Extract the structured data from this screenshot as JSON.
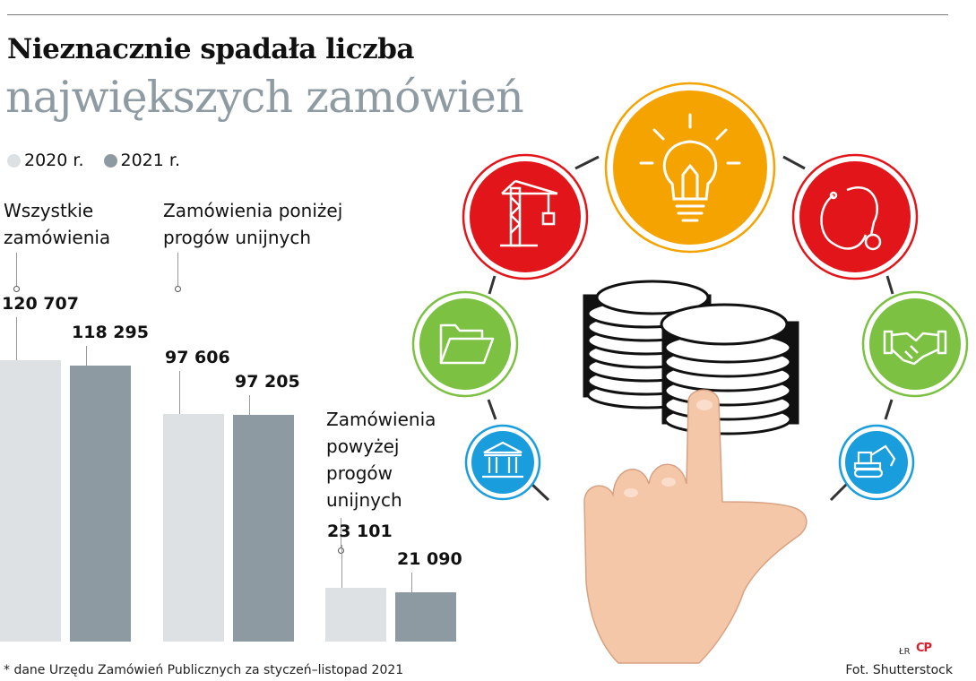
{
  "headline": {
    "line1": "Nieznacznie spadała liczba",
    "line2": "największych zamówień"
  },
  "legend": [
    {
      "label": "2020 r.",
      "color": "#dde1e4"
    },
    {
      "label": "2021 r.",
      "color": "#8d9aa1"
    }
  ],
  "chart_data": {
    "type": "bar",
    "title": "Nieznacznie spadała liczba największych zamówień",
    "categories": [
      "Wszystkie zamówienia",
      "Zamówienia poniżej progów unijnych",
      "Zamówienia powyżej progów unijnych"
    ],
    "category_lines": [
      [
        "Wszystkie",
        "zamówienia"
      ],
      [
        "Zamówienia poniżej",
        "progów unijnych"
      ],
      [
        "Zamówienia",
        "powyżej",
        "progów",
        "unijnych"
      ]
    ],
    "series": [
      {
        "name": "2020 r.",
        "values": [
          120707,
          97606,
          23101
        ],
        "labels": [
          "120 707",
          "97 606",
          "23 101"
        ],
        "color": "#dde1e4"
      },
      {
        "name": "2021 r.",
        "values": [
          118295,
          97205,
          21090
        ],
        "labels": [
          "118 295",
          "97 205",
          "21 090"
        ],
        "color": "#8d9aa1"
      }
    ],
    "ylim": [
      0,
      150000
    ],
    "grid": false,
    "legend": "top-left"
  },
  "illustration": {
    "icons": [
      "crane-icon",
      "lightbulb-icon",
      "stethoscope-icon",
      "folder-icon",
      "handshake-icon",
      "bank-building-icon",
      "excavator-icon",
      "coins-stack-icon",
      "pointing-hand-icon"
    ],
    "colors": {
      "red": "#e2151b",
      "orange": "#f5a300",
      "green": "#7cc142",
      "blue": "#1a9ddc"
    }
  },
  "footnote": "* dane Urzędu Zamówień Publicznych za styczeń–listopad 2021",
  "credit": "Fot. Shutterstock",
  "author": "ŁR",
  "logo": "CP"
}
